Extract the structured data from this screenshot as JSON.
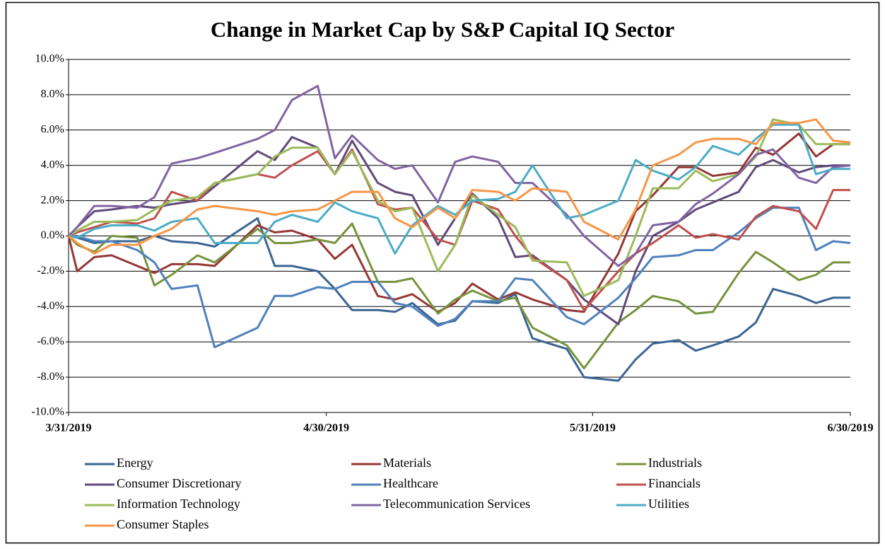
{
  "chart_data": {
    "type": "line",
    "title": "Change in Market  Cap by S&P Capital IQ Sector",
    "x": [
      "3/31/2019",
      "4/1/2019",
      "4/3/2019",
      "4/5/2019",
      "4/8/2019",
      "4/10/2019",
      "4/12/2019",
      "4/15/2019",
      "4/17/2019",
      "4/22/2019",
      "4/24/2019",
      "4/26/2019",
      "4/29/2019",
      "5/1/2019",
      "5/3/2019",
      "5/6/2019",
      "5/8/2019",
      "5/10/2019",
      "5/13/2019",
      "5/15/2019",
      "5/17/2019",
      "5/20/2019",
      "5/22/2019",
      "5/24/2019",
      "5/28/2019",
      "5/30/2019",
      "6/3/2019",
      "6/5/2019",
      "6/7/2019",
      "6/10/2019",
      "6/12/2019",
      "6/14/2019",
      "6/17/2019",
      "6/19/2019",
      "6/21/2019",
      "6/24/2019",
      "6/26/2019",
      "6/28/2019",
      "6/30/2019"
    ],
    "xlim": [
      "3/31/2019",
      "6/30/2019"
    ],
    "xticks": [
      "3/31/2019",
      "4/30/2019",
      "5/31/2019",
      "6/30/2019"
    ],
    "ylim": [
      -10,
      10
    ],
    "yticks": [
      {
        "value": -10,
        "label": "-10.0%"
      },
      {
        "value": -8,
        "label": "-8.0%"
      },
      {
        "value": -6,
        "label": "-6.0%"
      },
      {
        "value": -4,
        "label": "-4.0%"
      },
      {
        "value": -2,
        "label": "-2.0%"
      },
      {
        "value": 0,
        "label": "0.0%"
      },
      {
        "value": 2,
        "label": "2.0%"
      },
      {
        "value": 4,
        "label": "4.0%"
      },
      {
        "value": 6,
        "label": "6.0%"
      },
      {
        "value": 8,
        "label": "8.0%"
      },
      {
        "value": 10,
        "label": "10.0%"
      }
    ],
    "grid": true,
    "legend": "bottom",
    "series": [
      {
        "name": "Energy",
        "color": "#3a6593",
        "values": [
          0,
          -0.1,
          -0.4,
          -0.3,
          -0.3,
          0.0,
          -0.3,
          -0.4,
          -0.6,
          1.0,
          -1.7,
          -1.7,
          -2.0,
          -3.0,
          -4.2,
          -4.2,
          -4.3,
          -3.8,
          -5.0,
          -4.8,
          -3.7,
          -3.8,
          -3.3,
          -5.8,
          -6.4,
          -8.0,
          -8.2,
          -7.0,
          -6.1,
          -5.9,
          -6.5,
          -6.2,
          -5.7,
          -4.9,
          -3.0,
          -3.4,
          -3.8,
          -3.5,
          -3.5
        ]
      },
      {
        "name": "Materials",
        "color": "#953735",
        "values": [
          0,
          -2.0,
          -1.2,
          -1.1,
          -1.7,
          -2.1,
          -1.6,
          -1.6,
          -1.7,
          0.6,
          0.2,
          0.3,
          -0.2,
          -1.3,
          -0.5,
          -3.4,
          -3.6,
          -3.3,
          -4.3,
          -3.8,
          -2.7,
          -3.6,
          -3.2,
          -3.6,
          -4.2,
          -4.3,
          -1.0,
          1.4,
          2.3,
          3.9,
          3.9,
          3.4,
          3.6,
          5.0,
          4.6,
          5.8,
          4.5,
          5.2,
          5.2
        ]
      },
      {
        "name": "Industrials",
        "color": "#77933c",
        "values": [
          0,
          -0.5,
          -0.9,
          0.0,
          -0.1,
          -2.8,
          -2.2,
          -1.1,
          -1.5,
          0.4,
          -0.4,
          -0.4,
          -0.2,
          -0.4,
          0.7,
          -2.6,
          -2.6,
          -2.4,
          -4.4,
          -3.6,
          -3.1,
          -3.7,
          -3.5,
          -5.2,
          -6.2,
          -7.5,
          -4.9,
          -4.2,
          -3.4,
          -3.7,
          -4.4,
          -4.3,
          -2.1,
          -0.9,
          -1.5,
          -2.5,
          -2.2,
          -1.5,
          -1.5
        ]
      },
      {
        "name": "Consumer Discretionary",
        "color": "#604a7b",
        "values": [
          0,
          0.5,
          1.4,
          1.5,
          1.7,
          1.6,
          1.8,
          2.0,
          2.8,
          4.8,
          4.3,
          5.6,
          5.0,
          3.5,
          5.4,
          3.0,
          2.5,
          2.3,
          -0.5,
          1.0,
          2.4,
          1.0,
          -1.2,
          -1.1,
          -2.5,
          -3.6,
          -5.0,
          -2.0,
          0.0,
          0.8,
          1.5,
          1.9,
          2.5,
          3.9,
          4.3,
          3.6,
          3.9,
          4.0,
          4.0
        ]
      },
      {
        "name": "Healthcare",
        "color": "#4f81bd",
        "values": [
          0,
          0.0,
          -0.3,
          -0.3,
          -0.8,
          -1.5,
          -3.0,
          -2.8,
          -6.3,
          -5.2,
          -3.4,
          -3.4,
          -2.9,
          -3.0,
          -2.6,
          -2.6,
          -3.8,
          -4.0,
          -5.1,
          -4.7,
          -3.7,
          -3.7,
          -2.4,
          -2.5,
          -4.6,
          -5.0,
          -3.5,
          -2.4,
          -1.2,
          -1.1,
          -0.8,
          -0.8,
          0.2,
          1.0,
          1.6,
          1.6,
          -0.8,
          -0.3,
          -0.4
        ]
      },
      {
        "name": "Financials",
        "color": "#c0504d",
        "values": [
          0,
          0.2,
          0.5,
          0.8,
          0.7,
          1.0,
          2.5,
          2.0,
          3.0,
          3.5,
          3.3,
          4.0,
          4.8,
          3.5,
          4.9,
          1.8,
          1.5,
          1.6,
          -0.2,
          -0.5,
          2.0,
          1.5,
          0.0,
          -1.2,
          -2.5,
          -4.2,
          -2.0,
          -1.0,
          -0.4,
          0.6,
          -0.1,
          0.1,
          -0.2,
          1.1,
          1.7,
          1.4,
          0.4,
          2.6,
          2.6
        ]
      },
      {
        "name": "Information Technology",
        "color": "#9bbb59",
        "values": [
          0,
          0.3,
          0.8,
          0.8,
          0.9,
          1.5,
          2.0,
          2.2,
          3.0,
          3.5,
          4.5,
          5.0,
          5.0,
          3.5,
          4.8,
          2.0,
          1.4,
          1.6,
          -2.0,
          -0.5,
          2.3,
          1.2,
          0.5,
          -1.4,
          -1.5,
          -3.4,
          -2.5,
          0.0,
          2.7,
          2.7,
          3.7,
          3.1,
          3.5,
          4.5,
          6.6,
          6.3,
          5.2,
          5.2,
          5.2
        ]
      },
      {
        "name": "Telecommunication Services",
        "color": "#8064a2",
        "values": [
          0,
          0.5,
          1.7,
          1.7,
          1.6,
          2.2,
          4.1,
          4.4,
          4.7,
          5.5,
          6.0,
          7.7,
          8.5,
          4.4,
          5.7,
          4.3,
          3.8,
          4.0,
          1.9,
          4.2,
          4.5,
          4.2,
          3.0,
          3.0,
          1.2,
          0.0,
          -1.7,
          -1.0,
          0.6,
          0.8,
          1.8,
          2.4,
          3.5,
          4.6,
          4.9,
          3.3,
          3.0,
          3.9,
          4.0
        ]
      },
      {
        "name": "Utilities",
        "color": "#4bacc6",
        "values": [
          0,
          -0.1,
          0.4,
          0.6,
          0.6,
          0.3,
          0.8,
          1.0,
          -0.4,
          -0.4,
          0.8,
          1.2,
          0.8,
          1.9,
          1.4,
          1.0,
          -1.0,
          0.6,
          1.7,
          1.2,
          2.0,
          2.1,
          2.5,
          4.0,
          1.0,
          1.2,
          2.0,
          4.3,
          3.7,
          3.2,
          3.9,
          5.1,
          4.6,
          5.5,
          6.3,
          6.3,
          3.5,
          3.8,
          3.8
        ]
      },
      {
        "name": "Consumer Staples",
        "color": "#f79646",
        "values": [
          0,
          -0.4,
          -1.0,
          -0.5,
          -0.5,
          0.0,
          0.4,
          1.5,
          1.7,
          1.4,
          1.2,
          1.4,
          1.5,
          2.0,
          2.5,
          2.5,
          1.0,
          0.5,
          1.6,
          1.0,
          2.6,
          2.5,
          2.0,
          2.7,
          2.5,
          0.8,
          -0.2,
          1.5,
          4.0,
          4.6,
          5.3,
          5.5,
          5.5,
          5.2,
          6.4,
          6.4,
          6.6,
          5.4,
          5.3
        ]
      }
    ]
  }
}
